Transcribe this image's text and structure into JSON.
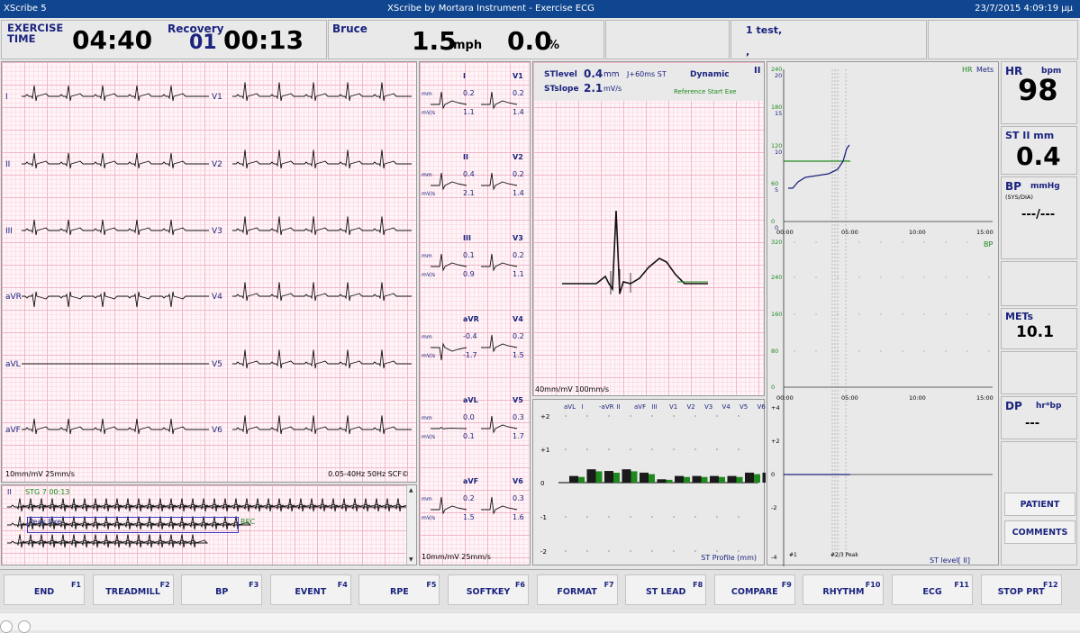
{
  "window": {
    "app": "XScribe 5",
    "title": "XScribe by Mortara Instrument - Exercise ECG",
    "datetime": "23/7/2015 4:09:19 μμ"
  },
  "header": {
    "phase_label": "EXERCISE\nTIME",
    "phase_time": "04:40",
    "recovery_label": "Recovery",
    "stage": "01",
    "stage_time": "00:13",
    "protocol": "Bruce",
    "speed": "1.5",
    "speed_unit": "mph",
    "grade": "0.0",
    "grade_unit": "%",
    "patient_line1": "1  test,",
    "patient_line2": ","
  },
  "rhythm_panel": {
    "leads_left": [
      "I",
      "II",
      "III",
      "aVR",
      "aVL",
      "aVF"
    ],
    "leads_right": [
      "V1",
      "V2",
      "V3",
      "V4",
      "V5",
      "V6"
    ],
    "scale": "10mm/mV   25mm/s",
    "filter": "0.05-40Hz  50Hz  SCF©"
  },
  "strip": {
    "lead": "II",
    "stage": "STG 7 00:13",
    "event": "Peak Exe",
    "rec": "REC"
  },
  "median_panel": {
    "scale": "10mm/mV   25mm/s",
    "pairs": [
      {
        "l": "I",
        "lv": "0.2",
        "ls": "1.1",
        "r": "V1",
        "rv": "0.2",
        "rs": "1.4"
      },
      {
        "l": "II",
        "lv": "0.4",
        "ls": "2.1",
        "r": "V2",
        "rv": "0.2",
        "rs": "1.4"
      },
      {
        "l": "III",
        "lv": "0.1",
        "ls": "0.9",
        "r": "V3",
        "rv": "0.2",
        "rs": "1.1"
      },
      {
        "l": "aVR",
        "lv": "-0.4",
        "ls": "-1.7",
        "r": "V4",
        "rv": "0.2",
        "rs": "1.5"
      },
      {
        "l": "aVL",
        "lv": "0.0",
        "ls": "0.1",
        "r": "V5",
        "rv": "0.3",
        "rs": "1.7"
      },
      {
        "l": "aVF",
        "lv": "0.2",
        "ls": "1.5",
        "r": "V6",
        "rv": "0.3",
        "rs": "1.6"
      }
    ],
    "mm": "mm",
    "mvs": "mV/s"
  },
  "zoom": {
    "stlevel_label": "STlevel",
    "stlevel": "0.4",
    "stlevel_unit": "mm",
    "stslope_label": "STslope",
    "stslope": "2.1",
    "stslope_unit": "mV/s",
    "j_label": "J+60ms ST",
    "mode": "Dynamic",
    "lead": "II",
    "ref": "Reference Start Exe",
    "scale": "40mm/mV   100mm/s"
  },
  "profile": {
    "title": "ST Profile (mm)",
    "leads": [
      "aVL",
      "I",
      "-aVR",
      "II",
      "aVF",
      "III",
      "V1",
      "V2",
      "V3",
      "V4",
      "V5",
      "V6"
    ],
    "yticks": [
      "+2",
      "+1",
      "0",
      "-1",
      "-2"
    ]
  },
  "trends": {
    "hr_label": "HR",
    "mets_label": "Mets",
    "hr_ticks": [
      "240",
      "180",
      "120",
      "60",
      "0"
    ],
    "mets_ticks": [
      "20",
      "15",
      "10",
      "5",
      "0"
    ],
    "time_ticks": [
      "00:00",
      "05:00",
      "10:00",
      "15:00"
    ],
    "bp_label": "BP",
    "bp_ticks": [
      "320",
      "240",
      "160",
      "80",
      "0"
    ],
    "st_ticks": [
      "+4",
      "+2",
      "0",
      "-2",
      "-4"
    ],
    "st_label": "ST level[ II]",
    "markers": "#1",
    "markers2": "#2/3 Peak"
  },
  "vitals": {
    "hr_label": "HR",
    "hr_unit": "bpm",
    "hr": "98",
    "st_label": "ST  II  mm",
    "st": "0.4",
    "bp_label": "BP",
    "bp_unit": "mmHg",
    "bp_sub": "(SYS/DIA)",
    "bp": "---/---",
    "mets_label": "METs",
    "mets": "10.1",
    "dp_label": "DP",
    "dp_unit": "hr*bp",
    "dp": "---"
  },
  "buttons": {
    "patient": "PATIENT",
    "comments": "COMMENTS"
  },
  "fkeys": [
    {
      "l": "END",
      "k": "F1"
    },
    {
      "l": "TREADMILL",
      "k": "F2"
    },
    {
      "l": "BP",
      "k": "F3"
    },
    {
      "l": "EVENT",
      "k": "F4"
    },
    {
      "l": "RPE",
      "k": "F5"
    },
    {
      "l": "SOFTKEY",
      "k": "F6"
    },
    {
      "l": "FORMAT",
      "k": "F7"
    },
    {
      "l": "ST LEAD",
      "k": "F8"
    },
    {
      "l": "COMPARE",
      "k": "F9"
    },
    {
      "l": "RHYTHM",
      "k": "F10"
    },
    {
      "l": "ECG",
      "k": "F11"
    },
    {
      "l": "STOP PRT",
      "k": "F12"
    }
  ],
  "colors": {
    "navy": "#1a237e",
    "green": "#1e8a1e",
    "blue": "#10468f"
  }
}
